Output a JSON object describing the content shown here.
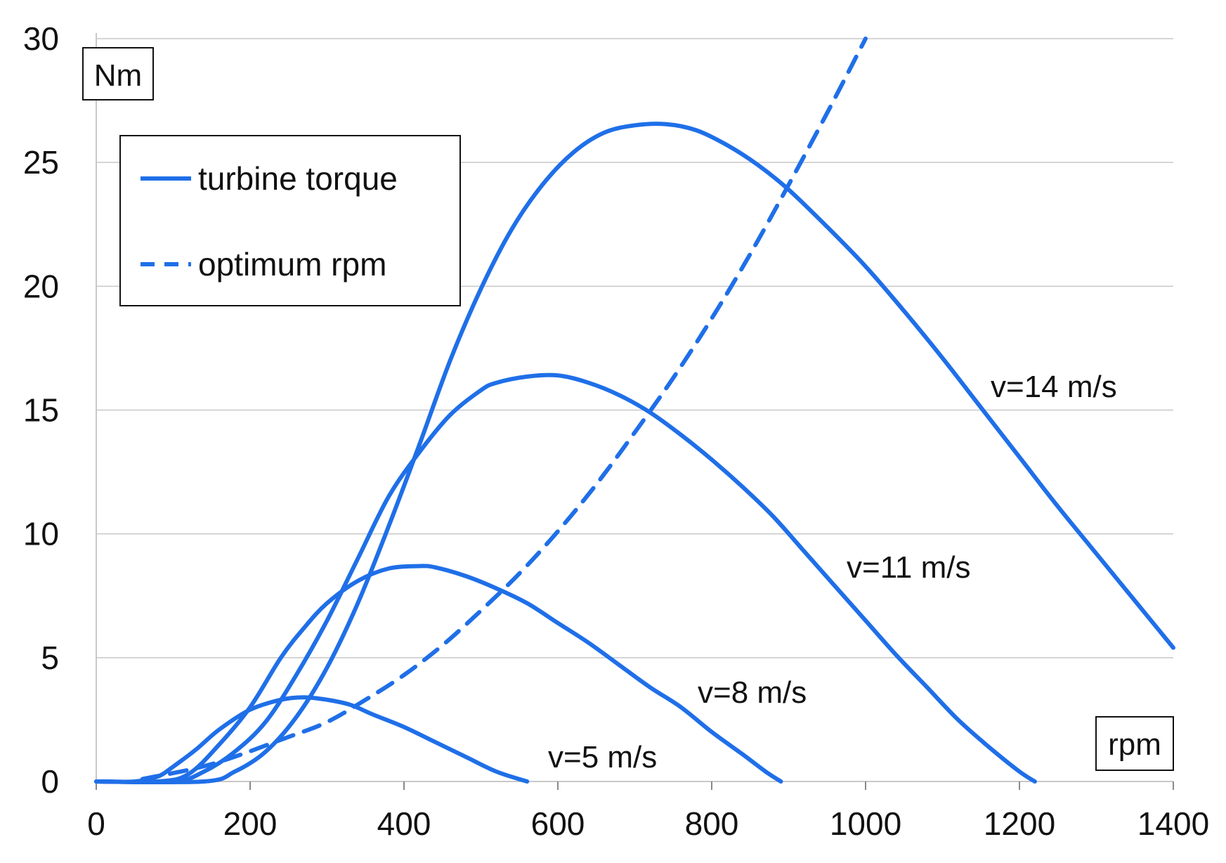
{
  "chart_data": {
    "type": "line",
    "title": "",
    "xlabel": "rpm",
    "ylabel": "Nm",
    "xlim": [
      0,
      1400
    ],
    "ylim": [
      0,
      30
    ],
    "xticks": [
      0,
      200,
      400,
      600,
      800,
      1000,
      1200,
      1400
    ],
    "yticks": [
      0,
      5,
      10,
      15,
      20,
      25,
      30
    ],
    "grid": true,
    "legend_position": "top-left",
    "legend": [
      {
        "label": "turbine torque",
        "style": "solid"
      },
      {
        "label": "optimum rpm",
        "style": "dashed"
      }
    ],
    "color": "#1f6fe8",
    "series": [
      {
        "name": "v=5 m/s",
        "label": "v=5 m/s",
        "style": "solid",
        "x": [
          0,
          50,
          80,
          100,
          130,
          160,
          200,
          240,
          270,
          300,
          330,
          360,
          400,
          440,
          480,
          520,
          560
        ],
        "y": [
          0,
          0,
          0.2,
          0.6,
          1.3,
          2.1,
          2.9,
          3.3,
          3.4,
          3.3,
          3.1,
          2.7,
          2.2,
          1.6,
          1.0,
          0.4,
          0
        ]
      },
      {
        "name": "v=8 m/s",
        "label": "v=8 m/s",
        "style": "solid",
        "x": [
          0,
          80,
          120,
          160,
          200,
          240,
          270,
          300,
          340,
          380,
          420,
          440,
          480,
          520,
          560,
          600,
          640,
          680,
          720,
          760,
          800,
          840,
          870,
          890
        ],
        "y": [
          0,
          0,
          0.3,
          1.5,
          3.0,
          5.0,
          6.2,
          7.2,
          8.1,
          8.6,
          8.7,
          8.65,
          8.3,
          7.8,
          7.2,
          6.4,
          5.6,
          4.7,
          3.8,
          3.0,
          2.0,
          1.1,
          0.4,
          0
        ]
      },
      {
        "name": "v=11 m/s",
        "label": "v=11 m/s",
        "style": "solid",
        "x": [
          0,
          100,
          140,
          180,
          220,
          260,
          300,
          340,
          380,
          420,
          460,
          500,
          520,
          560,
          600,
          640,
          680,
          720,
          760,
          800,
          840,
          880,
          920,
          960,
          1000,
          1040,
          1080,
          1120,
          1160,
          1200,
          1220
        ],
        "y": [
          0,
          0,
          0.4,
          1.2,
          2.4,
          4.3,
          6.5,
          9.0,
          11.5,
          13.3,
          14.8,
          15.8,
          16.1,
          16.35,
          16.4,
          16.1,
          15.6,
          14.9,
          14.0,
          13.0,
          11.9,
          10.7,
          9.3,
          7.9,
          6.5,
          5.1,
          3.8,
          2.5,
          1.4,
          0.4,
          0
        ]
      },
      {
        "name": "v=14 m/s",
        "label": "v=14 m/s",
        "style": "solid",
        "x": [
          0,
          140,
          180,
          220,
          260,
          300,
          340,
          380,
          420,
          460,
          500,
          540,
          580,
          620,
          660,
          700,
          740,
          780,
          820,
          860,
          900,
          950,
          1000,
          1050,
          1100,
          1150,
          1200,
          1250,
          1300,
          1350,
          1400
        ],
        "y": [
          0,
          0,
          0.4,
          1.2,
          2.6,
          4.6,
          7.2,
          10.3,
          13.6,
          17.0,
          19.9,
          22.3,
          24.1,
          25.4,
          26.2,
          26.5,
          26.55,
          26.3,
          25.7,
          24.9,
          23.9,
          22.4,
          20.8,
          19.0,
          17.1,
          15.1,
          13.1,
          11.1,
          9.2,
          7.3,
          5.4
        ]
      },
      {
        "name": "optimum rpm",
        "label": "optimum rpm",
        "style": "dashed",
        "x": [
          60,
          150,
          250,
          300,
          350,
          400,
          450,
          500,
          550,
          600,
          650,
          700,
          750,
          800,
          850,
          900,
          950,
          1000
        ],
        "y": [
          0.1,
          0.7,
          1.8,
          2.4,
          3.3,
          4.3,
          5.5,
          6.9,
          8.4,
          10.1,
          12.0,
          14.1,
          16.3,
          18.7,
          21.3,
          24.1,
          27.0,
          30.0
        ]
      }
    ],
    "annotations": [
      "v=14 m/s",
      "v=11 m/s",
      "v=8 m/s",
      "v=5 m/s"
    ],
    "x_unit_box": "rpm",
    "y_unit_box": "Nm"
  }
}
